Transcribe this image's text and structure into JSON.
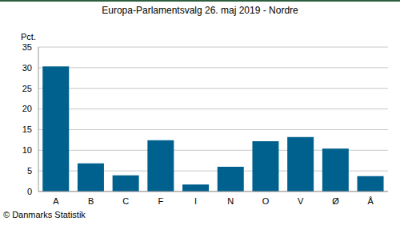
{
  "chart_data": {
    "type": "bar",
    "title": "Europa-Parlamentsvalg 26. maj 2019 - Nordre",
    "y_label": "Pct.",
    "source": "© Danmarks Statistik",
    "categories": [
      "A",
      "B",
      "C",
      "F",
      "I",
      "N",
      "O",
      "V",
      "Ø",
      "Å"
    ],
    "values": [
      30.3,
      6.8,
      3.9,
      12.4,
      1.7,
      6.0,
      12.2,
      13.2,
      10.4,
      3.7
    ],
    "color": "#00618f",
    "ylim": [
      0,
      35
    ],
    "yticks": [
      0,
      5,
      10,
      15,
      20,
      25,
      30,
      35
    ],
    "grid": true
  }
}
